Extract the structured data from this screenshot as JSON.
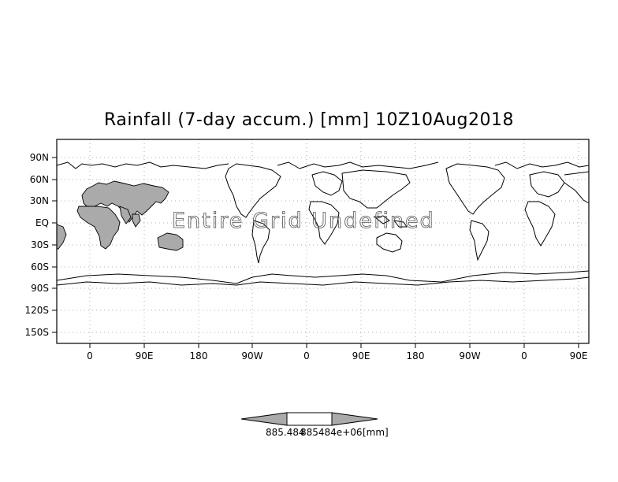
{
  "title": "Rainfall (7-day accum.) [mm] 10Z10Aug2018",
  "overlay_text": "Entire Grid Undefined",
  "y_ticks": [
    "90N",
    "60N",
    "30N",
    "EQ",
    "30S",
    "60S",
    "90S",
    "120S",
    "150S"
  ],
  "x_ticks": [
    "0",
    "90E",
    "180",
    "90W",
    "0",
    "90E",
    "180",
    "90W",
    "0",
    "90E"
  ],
  "colorbar": {
    "labels": [
      "885.484",
      "885484e+06",
      "[mm]"
    ],
    "colors": {
      "arrow": "#aaaaaa",
      "middle": "#ffffff"
    }
  },
  "colors": {
    "land_shaded": "#aaaaaa",
    "coast": "#000000",
    "grid": "#999999"
  }
}
